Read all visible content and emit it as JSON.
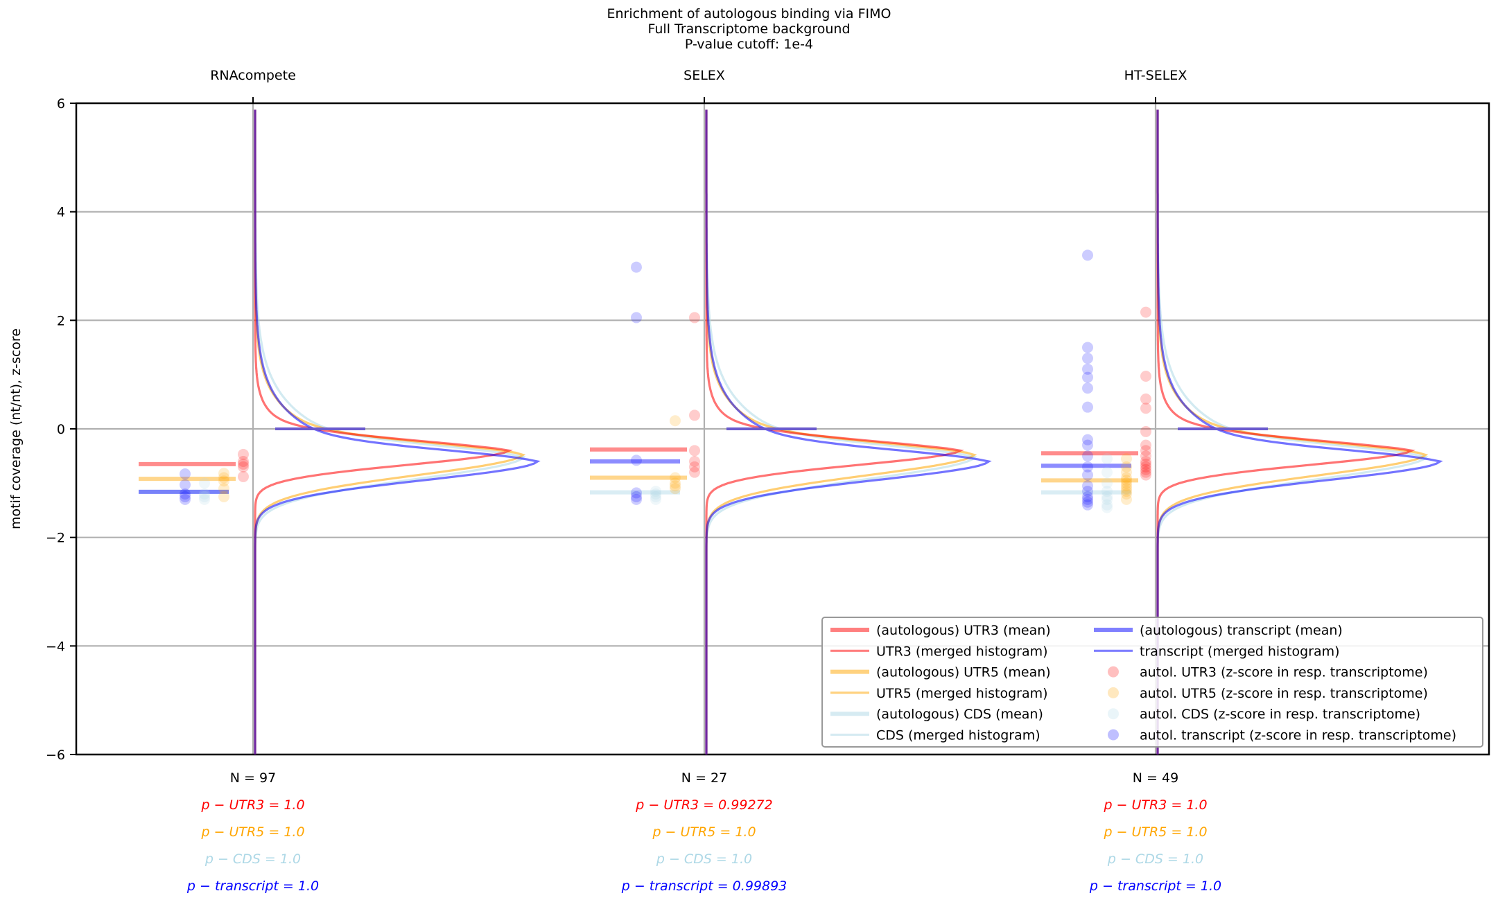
{
  "titles": {
    "line1": "Enrichment of autologous binding via FIMO",
    "line2": "Full Transcriptome background",
    "line3": "P-value cutoff: 1e-4"
  },
  "colors": {
    "utr3": "#ff0000",
    "utr5": "#ffa500",
    "cds": "#add8e6",
    "transcript": "#0000ff",
    "grid": "#b0b0b0"
  },
  "chart_data": {
    "type": "violin",
    "ylabel": "motif coverage (nt/nt), z-score",
    "ylim": [
      -6,
      6
    ],
    "yticks": [
      -6,
      -4,
      -2,
      0,
      2,
      4,
      6
    ],
    "ytick_labels": [
      "−6",
      "−4",
      "−2",
      "0",
      "2",
      "4",
      "6"
    ],
    "grid": true,
    "legend_position": "lower-right",
    "legend": [
      {
        "label": "(autologous) UTR3 (mean)",
        "kind": "line-thick",
        "color": "utr3"
      },
      {
        "label": "UTR3 (merged histogram)",
        "kind": "line",
        "color": "utr3"
      },
      {
        "label": "(autologous) UTR5 (mean)",
        "kind": "line-thick",
        "color": "utr5"
      },
      {
        "label": "UTR5 (merged histogram)",
        "kind": "line",
        "color": "utr5"
      },
      {
        "label": "(autologous) CDS (mean)",
        "kind": "line-thick",
        "color": "cds"
      },
      {
        "label": "CDS (merged histogram)",
        "kind": "line",
        "color": "cds"
      },
      {
        "label": "(autologous) transcript (mean)",
        "kind": "line-thick",
        "color": "transcript"
      },
      {
        "label": "transcript (merged histogram)",
        "kind": "line",
        "color": "transcript"
      },
      {
        "label": "autol. UTR3 (z-score in resp. transcriptome)",
        "kind": "dot",
        "color": "utr3"
      },
      {
        "label": "autol. UTR5 (z-score in resp. transcriptome)",
        "kind": "dot",
        "color": "utr5"
      },
      {
        "label": "autol. CDS (z-score in resp. transcriptome)",
        "kind": "dot",
        "color": "cds"
      },
      {
        "label": "autol. transcript (z-score in resp. transcriptome)",
        "kind": "dot",
        "color": "transcript"
      }
    ],
    "groups": [
      {
        "name": "RNAcompete",
        "n_label": "N = 97",
        "p_labels": {
          "utr3": "p − UTR3 = 1.0",
          "utr5": "p − UTR5 = 1.0",
          "cds": "p − CDS = 1.0",
          "transcript": "p − transcript = 1.0"
        },
        "means": {
          "utr3": -0.65,
          "utr5": -0.92,
          "cds": -1.16,
          "transcript": -1.16
        },
        "points": {
          "utr3": [
            -0.47,
            -0.6,
            -0.65,
            -0.7,
            -0.88
          ],
          "utr5": [
            -0.82,
            -0.9,
            -0.96,
            -1.1,
            -1.25
          ],
          "cds": [
            -1.0,
            -1.2,
            -1.25,
            -1.3
          ],
          "transcript": [
            -0.83,
            -1.03,
            -1.2,
            -1.25,
            -1.3
          ]
        }
      },
      {
        "name": "SELEX",
        "n_label": "N = 27",
        "p_labels": {
          "utr3": "p − UTR3 = 0.99272",
          "utr5": "p − UTR5 = 1.0",
          "cds": "p − CDS = 1.0",
          "transcript": "p − transcript = 0.99893"
        },
        "means": {
          "utr3": -0.38,
          "utr5": -0.9,
          "cds": -1.17,
          "transcript": -0.6
        },
        "points": {
          "utr3": [
            2.05,
            0.25,
            -0.4,
            -0.6,
            -0.7,
            -0.8
          ],
          "utr5": [
            0.15,
            -0.9,
            -1.0,
            -1.05,
            -1.1
          ],
          "cds": [
            -1.15,
            -1.2,
            -1.25,
            -1.3
          ],
          "transcript": [
            2.98,
            2.05,
            -0.58,
            -1.18,
            -1.25,
            -1.3
          ]
        }
      },
      {
        "name": "HT-SELEX",
        "n_label": "N = 49",
        "p_labels": {
          "utr3": "p − UTR3 = 1.0",
          "utr5": "p − UTR5 = 1.0",
          "cds": "p − CDS = 1.0",
          "transcript": "p − transcript = 1.0"
        },
        "means": {
          "utr3": -0.45,
          "utr5": -0.95,
          "cds": -1.17,
          "transcript": -0.68
        },
        "points": {
          "utr3": [
            2.15,
            0.97,
            0.55,
            0.38,
            -0.05,
            -0.3,
            -0.4,
            -0.5,
            -0.6,
            -0.65,
            -0.7,
            -0.75,
            -0.8,
            -0.85
          ],
          "utr5": [
            -0.55,
            -0.7,
            -0.8,
            -0.9,
            -0.95,
            -1.0,
            -1.05,
            -1.1,
            -1.15,
            -1.2,
            -1.3
          ],
          "cds": [
            -0.55,
            -0.8,
            -1.0,
            -1.15,
            -1.25,
            -1.3,
            -1.4,
            -1.45
          ],
          "transcript": [
            3.2,
            1.5,
            1.3,
            1.1,
            0.95,
            0.75,
            0.4,
            -0.2,
            -0.3,
            -0.5,
            -0.7,
            -0.85,
            -1.05,
            -1.15,
            -1.25,
            -1.3,
            -1.35,
            -1.4
          ]
        }
      }
    ]
  }
}
